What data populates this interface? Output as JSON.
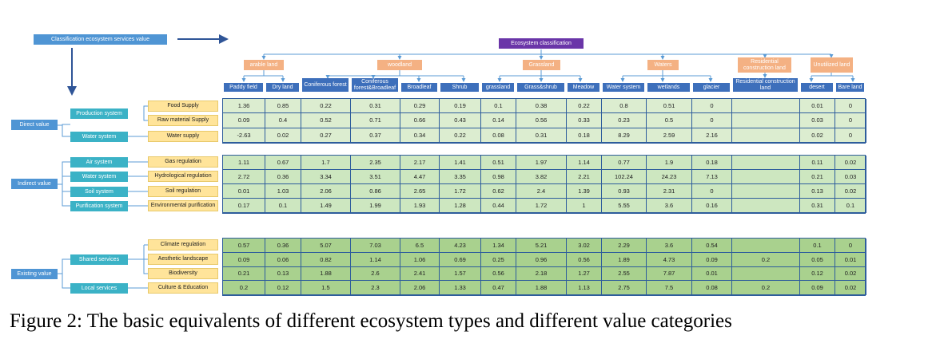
{
  "header": {
    "classification_label": "Classification ecosystem services value",
    "root_label": "Ecosystem classification"
  },
  "categories": [
    "arable land",
    "woodland",
    "Grassland",
    "Waters",
    "Residential construction land",
    "Unutilized land"
  ],
  "subtypes": [
    "Paddy field",
    "Dry land",
    "Coniferous forest",
    "Coniferous forest&Broadleaf",
    "Broadleaf",
    "Shrub",
    "grassland",
    "Grass&shrub",
    "Meadow",
    "Water system",
    "wetlands",
    "glacier",
    "Residential construction land",
    "desert",
    "Bare land"
  ],
  "values": [
    {
      "label": "Direct value"
    },
    {
      "label": "Indirect value"
    },
    {
      "label": "Existing value"
    }
  ],
  "systems": [
    "Production system",
    "Water system",
    "Air system",
    "Water system",
    "Soil system",
    "Purification system",
    "Shared services",
    "Local services"
  ],
  "services": [
    "Food Supply",
    "Raw material Supply",
    "Water supply",
    "Gas regulation",
    "Hydrological regulation",
    "Soil regulation",
    "Environmental purification",
    "Climate regulation",
    "Aesthetic landscape",
    "Biodiversity",
    "Culture & Education"
  ],
  "table": {
    "direct": [
      [
        "1.36",
        "0.85",
        "0.22",
        "0.31",
        "0.29",
        "0.19",
        "0.1",
        "0.38",
        "0.22",
        "0.8",
        "0.51",
        "0",
        "",
        "0.01",
        "0"
      ],
      [
        "0.09",
        "0.4",
        "0.52",
        "0.71",
        "0.66",
        "0.43",
        "0.14",
        "0.56",
        "0.33",
        "0.23",
        "0.5",
        "0",
        "",
        "0.03",
        "0"
      ],
      [
        "-2.63",
        "0.02",
        "0.27",
        "0.37",
        "0.34",
        "0.22",
        "0.08",
        "0.31",
        "0.18",
        "8.29",
        "2.59",
        "2.16",
        "",
        "0.02",
        "0"
      ]
    ],
    "indirect": [
      [
        "1.11",
        "0.67",
        "1.7",
        "2.35",
        "2.17",
        "1.41",
        "0.51",
        "1.97",
        "1.14",
        "0.77",
        "1.9",
        "0.18",
        "",
        "0.11",
        "0.02"
      ],
      [
        "2.72",
        "0.36",
        "3.34",
        "3.51",
        "4.47",
        "3.35",
        "0.98",
        "3.82",
        "2.21",
        "102.24",
        "24.23",
        "7.13",
        "",
        "0.21",
        "0.03"
      ],
      [
        "0.01",
        "1.03",
        "2.06",
        "0.86",
        "2.65",
        "1.72",
        "0.62",
        "2.4",
        "1.39",
        "0.93",
        "2.31",
        "0",
        "",
        "0.13",
        "0.02"
      ],
      [
        "0.17",
        "0.1",
        "1.49",
        "1.99",
        "1.93",
        "1.28",
        "0.44",
        "1.72",
        "1",
        "5.55",
        "3.6",
        "0.16",
        "",
        "0.31",
        "0.1"
      ]
    ],
    "existing": [
      [
        "0.57",
        "0.36",
        "5.07",
        "7.03",
        "6.5",
        "4.23",
        "1.34",
        "5.21",
        "3.02",
        "2.29",
        "3.6",
        "0.54",
        "",
        "0.1",
        "0"
      ],
      [
        "0.09",
        "0.06",
        "0.82",
        "1.14",
        "1.06",
        "0.69",
        "0.25",
        "0.96",
        "0.56",
        "1.89",
        "4.73",
        "0.09",
        "0.2",
        "0.05",
        "0.01"
      ],
      [
        "0.21",
        "0.13",
        "1.88",
        "2.6",
        "2.41",
        "1.57",
        "0.56",
        "2.18",
        "1.27",
        "2.55",
        "7.87",
        "0.01",
        "",
        "0.12",
        "0.02"
      ],
      [
        "0.2",
        "0.12",
        "1.5",
        "2.3",
        "2.06",
        "1.33",
        "0.47",
        "1.88",
        "1.13",
        "2.75",
        "7.5",
        "0.08",
        "0.2",
        "0.09",
        "0.02"
      ]
    ]
  },
  "caption": "Figure 2: The basic equivalents of different ecosystem types and different value categories",
  "colors": {
    "blue": "#4f95d4",
    "navy": "#3d6fbb",
    "purple": "#6a35a8",
    "orange": "#f4b183",
    "yellow": "#ffe49a",
    "teal": "#3bb2c6",
    "grid_line": "#2e5d9c",
    "direct_fill": "#dcedd0",
    "indirect_fill": "#cde7c0",
    "existing_fill": "#a9d18e",
    "arrow": "#2f5597"
  }
}
